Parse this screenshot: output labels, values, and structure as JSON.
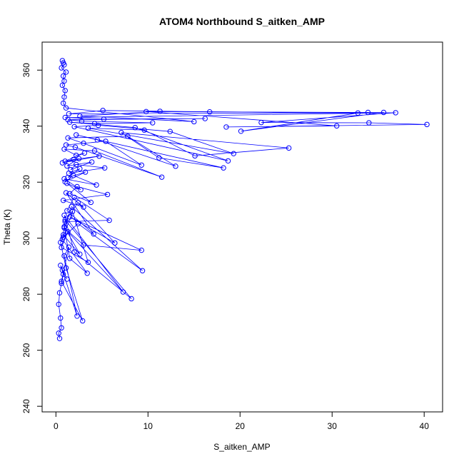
{
  "chart_data": {
    "type": "scatter",
    "title": "ATOM4 Northbound S_aitken_AMP",
    "xlabel": "S_aitken_AMP",
    "ylabel": "Theta (K)",
    "xlim": [
      -1.5,
      42
    ],
    "ylim": [
      238,
      370
    ],
    "xticks": [
      0,
      10,
      20,
      30,
      40
    ],
    "yticks": [
      240,
      260,
      280,
      300,
      320,
      340,
      360
    ],
    "grid": false,
    "legend": "none",
    "series": [
      {
        "color": "#0000ff",
        "marker": "open-circle",
        "connected": true,
        "x": [
          0.4,
          0.3,
          0.6,
          0.5,
          0.3,
          0.4,
          0.6,
          0.8,
          0.5,
          1.2,
          0.7,
          2.3,
          0.9,
          1.4,
          0.6,
          2.9,
          1.1,
          0.5,
          0.8,
          2.6,
          0.9,
          1.5,
          3.4,
          0.7,
          1.0,
          8.2,
          2.0,
          0.9,
          7.3,
          1.3,
          0.6,
          3.5,
          1.8,
          0.8,
          2.4,
          9.4,
          1.7,
          0.9,
          3.0,
          9.3,
          1.5,
          6.4,
          2.4,
          1.0,
          5.8,
          2.0,
          1.2,
          4.1,
          1.1,
          3.0,
          0.8,
          5.6,
          2.3,
          1.5,
          3.8,
          1.2,
          2.7,
          0.9,
          4.4,
          1.9,
          1.0,
          3.2,
          1.3,
          2.6,
          1.4,
          5.3,
          2.2,
          1.6,
          3.9,
          1.2,
          2.5,
          0.7,
          4.7,
          1.9,
          1.0,
          3.1,
          2.2,
          0.9,
          4.2,
          11.5,
          2.1,
          1.1,
          5.4,
          9.3,
          3.0,
          1.3,
          7.8,
          13.0,
          4.5,
          2.2,
          18.2,
          11.2,
          7.1,
          25.3,
          15.1,
          9.6,
          3.5,
          19.3,
          12.4,
          4.6,
          2.0,
          18.7,
          8.6,
          1.5,
          4.2,
          10.5,
          2.8,
          1.3,
          16.2,
          5.2,
          1.0,
          36.9,
          22.3,
          34.0,
          40.3,
          18.5,
          30.5,
          9.8,
          33.9,
          16.7,
          5.1,
          1.4,
          35.6,
          20.1,
          32.8,
          11.3,
          2.6,
          15.0,
          1.1,
          0.8,
          0.9,
          1.0,
          0.7,
          0.9,
          0.8,
          1.1,
          0.6,
          0.9,
          0.8,
          0.7
        ],
        "y": [
          264.2,
          266.1,
          268.0,
          271.5,
          276.4,
          280.5,
          283.9,
          287.1,
          290.3,
          285.4,
          288.6,
          272.2,
          293.7,
          296.8,
          284.6,
          270.5,
          289.4,
          298.5,
          301.2,
          294.3,
          304.1,
          292.8,
          287.5,
          299.6,
          306.5,
          278.4,
          295.1,
          308.2,
          280.8,
          302.3,
          296.7,
          291.4,
          309.5,
          300.4,
          305.2,
          288.4,
          311.3,
          303.7,
          297.6,
          295.7,
          307.6,
          298.3,
          312.7,
          305.9,
          306.4,
          314.6,
          309.8,
          301.5,
          316.2,
          311.1,
          313.5,
          315.6,
          318.4,
          315.9,
          312.8,
          319.6,
          317.3,
          321.2,
          319.0,
          322.4,
          320.1,
          323.6,
          321.7,
          324.8,
          323.2,
          325.1,
          326.3,
          324.5,
          327.2,
          325.8,
          328.4,
          326.9,
          329.3,
          328.1,
          327.5,
          330.4,
          329.6,
          331.8,
          331.2,
          321.8,
          332.5,
          333.3,
          334.6,
          326.1,
          333.9,
          335.8,
          336.4,
          325.7,
          335.1,
          336.9,
          325.1,
          328.7,
          337.7,
          332.2,
          329.4,
          338.6,
          339.3,
          330.2,
          338.1,
          340.3,
          339.8,
          327.6,
          339.5,
          341.4,
          340.9,
          341.2,
          341.8,
          342.3,
          342.7,
          342.5,
          343.1,
          344.8,
          341.3,
          341.2,
          340.6,
          339.7,
          340.1,
          345.2,
          344.9,
          345.1,
          345.6,
          344.4,
          344.9,
          338.2,
          344.7,
          345.3,
          343.6,
          341.6,
          346.5,
          348.2,
          350.4,
          352.7,
          354.6,
          356.1,
          357.9,
          359.3,
          360.8,
          361.9,
          362.6,
          363.4
        ]
      }
    ]
  }
}
